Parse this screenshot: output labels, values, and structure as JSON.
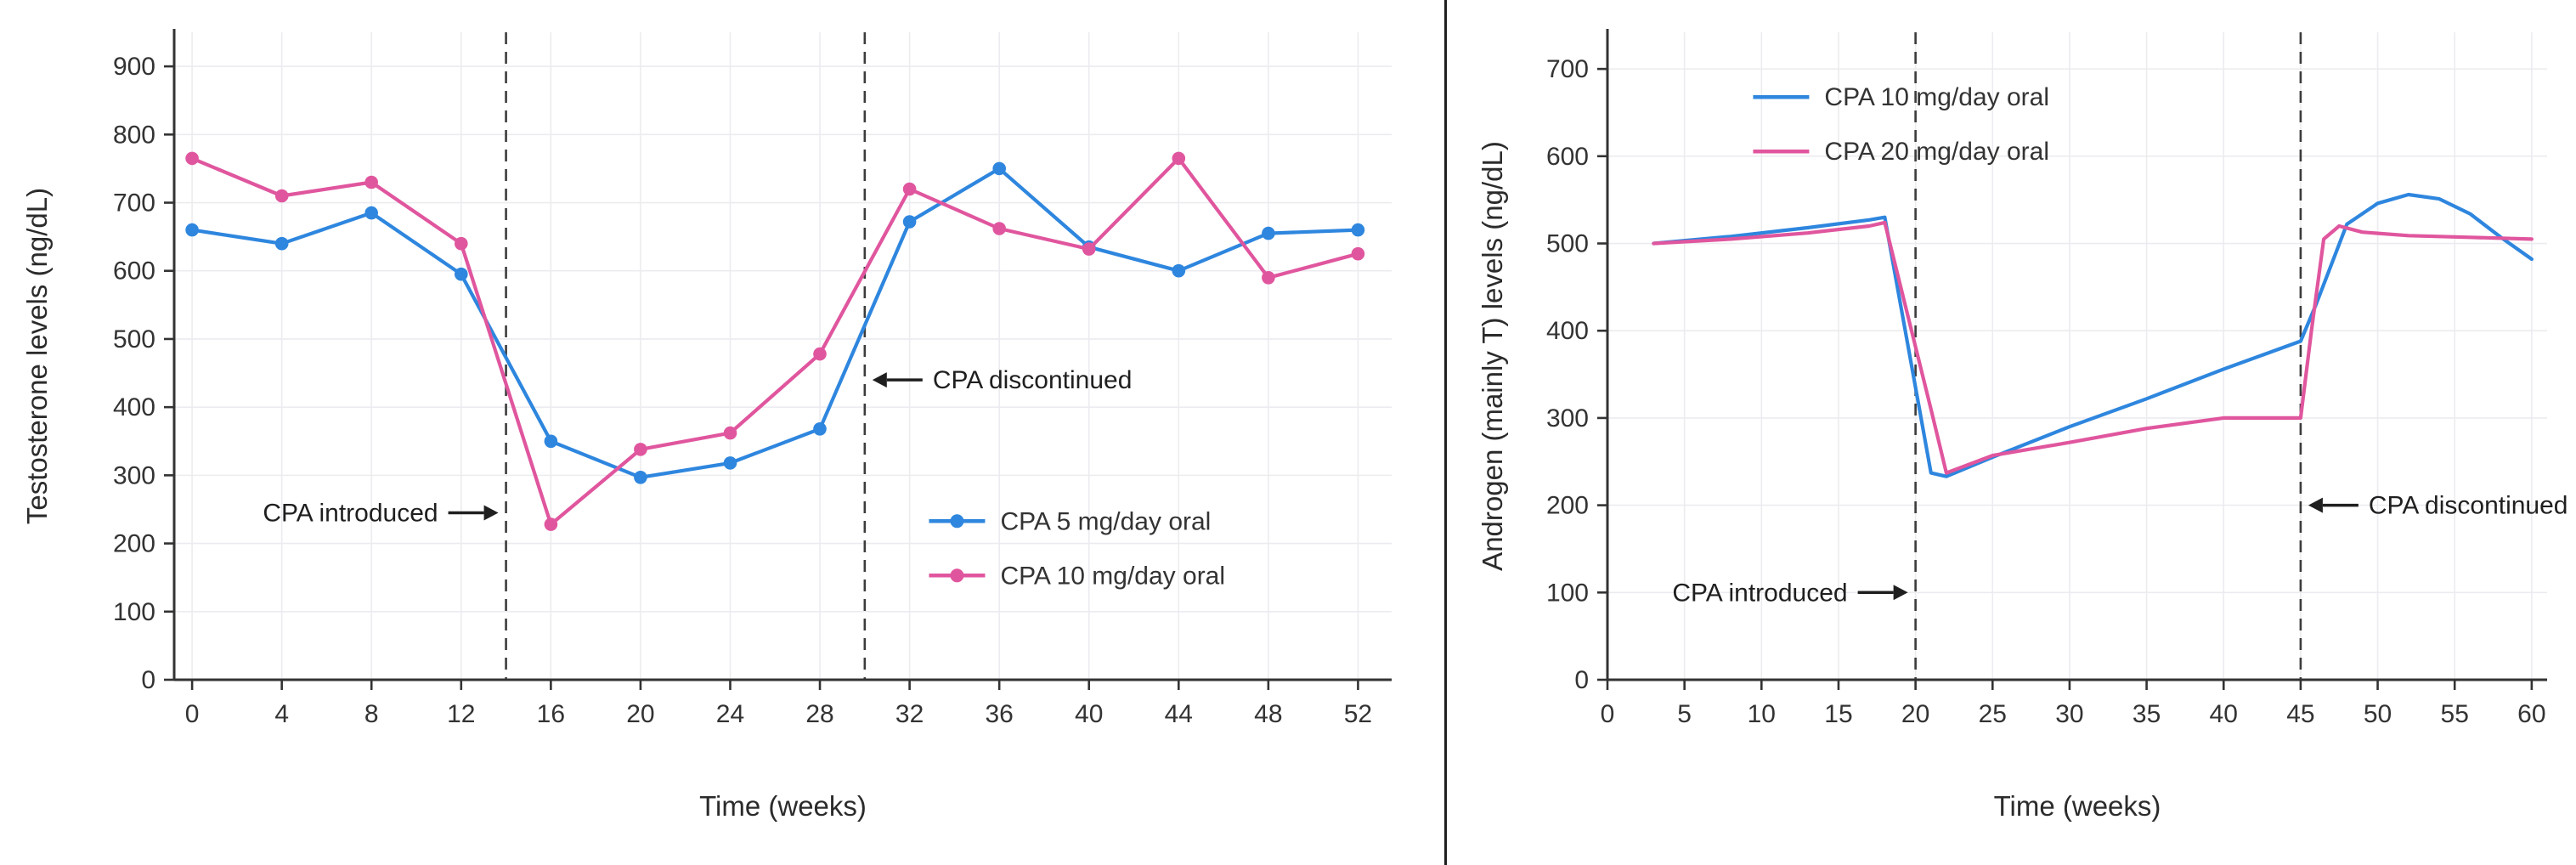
{
  "page": {
    "background": "#ffffff",
    "divider_color": "#1f1f1f"
  },
  "theme": {
    "grid": "#ececf0",
    "spine": "#333333",
    "tick": "#333333",
    "tick_label": "#333333",
    "axis_label": "#2b2b2b",
    "annotation": "#1f1f1f",
    "vline": "#3c3c3c",
    "legend_text": "#333333",
    "blue": "#2e86de",
    "pink": "#e0569e"
  },
  "chart_data": [
    {
      "type": "line",
      "title": "",
      "xlabel": "Time (weeks)",
      "ylabel": "Testosterone levels (ng/dL)",
      "xlim": [
        -0.8,
        53.5
      ],
      "ylim": [
        0,
        950
      ],
      "xticks": [
        0,
        4,
        8,
        12,
        16,
        20,
        24,
        28,
        32,
        36,
        40,
        44,
        48,
        52
      ],
      "yticks": [
        0,
        100,
        200,
        300,
        400,
        500,
        600,
        700,
        800,
        900
      ],
      "grid": true,
      "vlines": [
        {
          "x": 14
        },
        {
          "x": 30
        }
      ],
      "annotations": [
        {
          "text": "CPA introduced",
          "x": 14,
          "y": 245,
          "side": "left"
        },
        {
          "text": "CPA discontinued",
          "x": 30,
          "y": 440,
          "side": "right"
        }
      ],
      "legend": {
        "position": "lower-right-inside",
        "fx": 0.62,
        "fy": 0.755
      },
      "series": [
        {
          "name": "CPA 5 mg/day oral",
          "color": "#2e86de",
          "marker": true,
          "points": [
            [
              0,
              660
            ],
            [
              4,
              640
            ],
            [
              8,
              685
            ],
            [
              12,
              595
            ],
            [
              16,
              350
            ],
            [
              20,
              297
            ],
            [
              24,
              318
            ],
            [
              28,
              368
            ],
            [
              32,
              672
            ],
            [
              36,
              750
            ],
            [
              40,
              635
            ],
            [
              44,
              600
            ],
            [
              48,
              655
            ],
            [
              52,
              660
            ]
          ]
        },
        {
          "name": "CPA 10 mg/day oral",
          "color": "#e0569e",
          "marker": true,
          "points": [
            [
              0,
              765
            ],
            [
              4,
              710
            ],
            [
              8,
              730
            ],
            [
              12,
              640
            ],
            [
              16,
              228
            ],
            [
              20,
              338
            ],
            [
              24,
              362
            ],
            [
              28,
              478
            ],
            [
              32,
              720
            ],
            [
              36,
              662
            ],
            [
              40,
              632
            ],
            [
              44,
              765
            ],
            [
              48,
              590
            ],
            [
              52,
              625
            ]
          ]
        }
      ]
    },
    {
      "type": "line",
      "title": "",
      "xlabel": "Time (weeks)",
      "ylabel": "Androgen (mainly T) levels (ng/dL)",
      "xlim": [
        0,
        61
      ],
      "ylim": [
        0,
        742
      ],
      "xticks": [
        0,
        5,
        10,
        15,
        20,
        25,
        30,
        35,
        40,
        45,
        50,
        55,
        60
      ],
      "yticks": [
        0,
        100,
        200,
        300,
        400,
        500,
        600,
        700
      ],
      "grid": true,
      "vlines": [
        {
          "x": 20
        },
        {
          "x": 45
        }
      ],
      "annotations": [
        {
          "text": "CPA introduced",
          "x": 20,
          "y": 100,
          "side": "left"
        },
        {
          "text": "CPA discontinued",
          "x": 45,
          "y": 200,
          "side": "right"
        }
      ],
      "legend": {
        "position": "upper-left-inside",
        "fx": 0.155,
        "fy": 0.1
      },
      "series": [
        {
          "name": "CPA 10 mg/day oral",
          "color": "#2e86de",
          "marker": false,
          "points": [
            [
              3,
              500
            ],
            [
              8,
              508
            ],
            [
              13,
              518
            ],
            [
              17,
              527
            ],
            [
              18,
              530
            ],
            [
              21,
              237
            ],
            [
              22,
              233
            ],
            [
              25,
              255
            ],
            [
              30,
              290
            ],
            [
              35,
              322
            ],
            [
              40,
              356
            ],
            [
              45,
              388
            ],
            [
              46,
              430
            ],
            [
              48,
              522
            ],
            [
              50,
              546
            ],
            [
              52,
              556
            ],
            [
              54,
              551
            ],
            [
              56,
              534
            ],
            [
              58,
              507
            ],
            [
              60,
              482
            ]
          ]
        },
        {
          "name": "CPA 20 mg/day oral",
          "color": "#e0569e",
          "marker": false,
          "points": [
            [
              3,
              500
            ],
            [
              8,
              505
            ],
            [
              13,
              512
            ],
            [
              17,
              520
            ],
            [
              18,
              524
            ],
            [
              21,
              310
            ],
            [
              22,
              237
            ],
            [
              25,
              257
            ],
            [
              30,
              272
            ],
            [
              35,
              288
            ],
            [
              40,
              300
            ],
            [
              45,
              300
            ],
            [
              45.7,
              400
            ],
            [
              46.5,
              505
            ],
            [
              47.5,
              520
            ],
            [
              49,
              513
            ],
            [
              52,
              509
            ],
            [
              56,
              507
            ],
            [
              60,
              505
            ]
          ]
        }
      ]
    }
  ]
}
